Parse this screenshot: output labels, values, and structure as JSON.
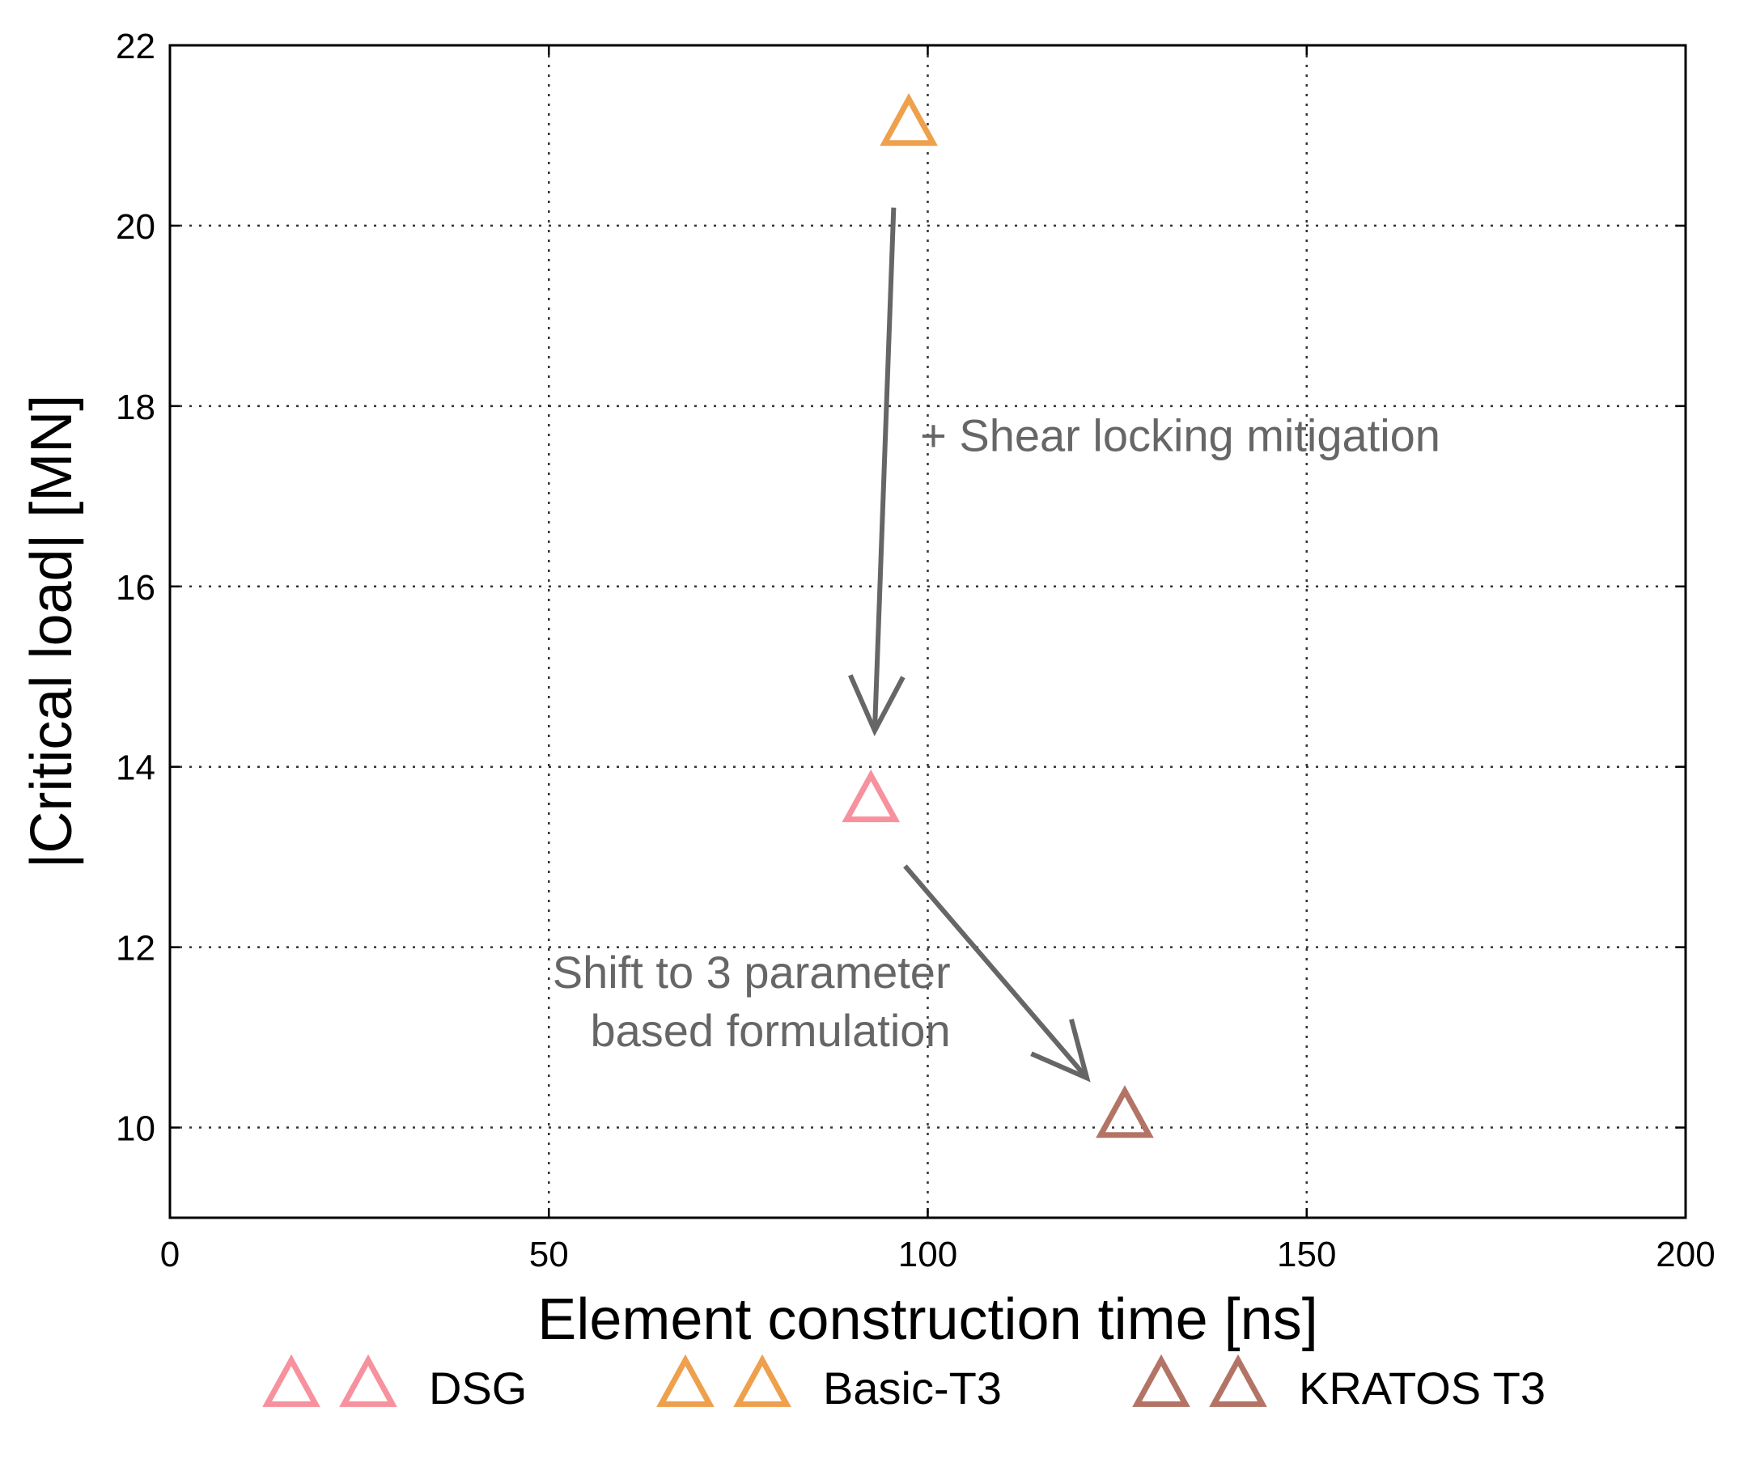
{
  "chart_data": {
    "type": "scatter",
    "xlabel": "Element construction time [ns]",
    "ylabel": "|Critical load| [MN]",
    "xlim": [
      0,
      200
    ],
    "ylim": [
      9,
      22
    ],
    "xticks": [
      0,
      50,
      100,
      150,
      200
    ],
    "yticks": [
      10,
      12,
      14,
      16,
      18,
      20,
      22
    ],
    "grid": true,
    "legend_position": "bottom",
    "series": [
      {
        "name": "DSG",
        "color": "#f7919e",
        "marker": "triangle-open",
        "points": [
          {
            "x": 92.5,
            "y": 13.6
          }
        ]
      },
      {
        "name": "Basic-T3",
        "color": "#eea04d",
        "marker": "triangle-open",
        "points": [
          {
            "x": 97.5,
            "y": 21.1
          }
        ]
      },
      {
        "name": "KRATOS T3",
        "color": "#b37466",
        "marker": "triangle-open",
        "points": [
          {
            "x": 126,
            "y": 10.1
          }
        ]
      }
    ],
    "annotations": [
      {
        "lines": [
          "+ Shear locking mitigation"
        ],
        "from": {
          "x": 95.5,
          "y": 20.2
        },
        "to": {
          "x": 93,
          "y": 14.4
        },
        "text_at": {
          "x": 99,
          "y": 17.5
        },
        "align": "start"
      },
      {
        "lines": [
          "Shift to 3 parameter",
          "based formulation"
        ],
        "from": {
          "x": 97,
          "y": 12.9
        },
        "to": {
          "x": 121,
          "y": 10.55
        },
        "text_at": {
          "x": 103,
          "y": 11.55
        },
        "align": "end"
      }
    ]
  }
}
